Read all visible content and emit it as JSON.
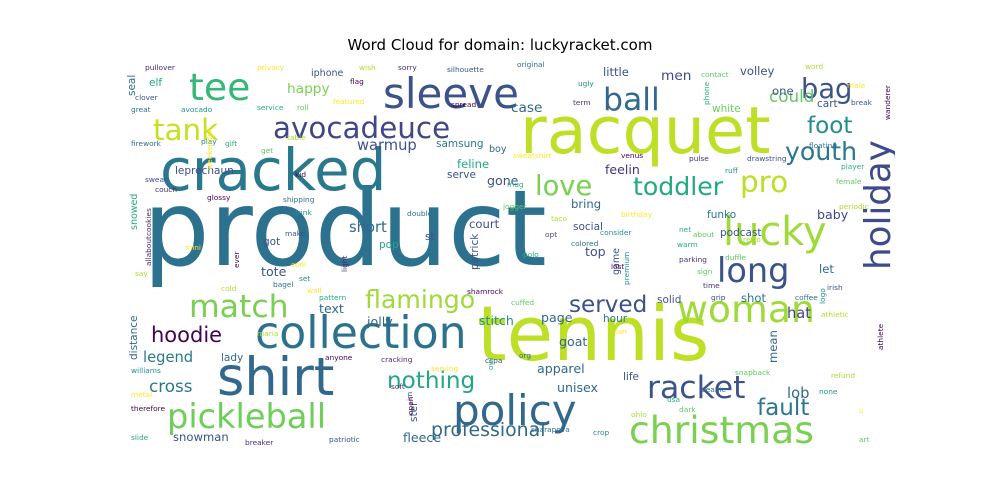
{
  "chart_data": {
    "type": "wordcloud",
    "title": "Word Cloud for domain: luckyracket.com",
    "palette": [
      "#440154",
      "#472c7a",
      "#3b518b",
      "#2c718e",
      "#21908d",
      "#27ad81",
      "#5cc863",
      "#aadc32",
      "#fde725"
    ],
    "words": [
      {
        "text": "product",
        "weight": 100
      },
      {
        "text": "tennis",
        "weight": 72
      },
      {
        "text": "racquet",
        "weight": 62
      },
      {
        "text": "cracked",
        "weight": 55
      },
      {
        "text": "shirt",
        "weight": 50
      },
      {
        "text": "collection",
        "weight": 42
      },
      {
        "text": "sleeve",
        "weight": 40
      },
      {
        "text": "policy",
        "weight": 40
      },
      {
        "text": "lucky",
        "weight": 38
      },
      {
        "text": "woman",
        "weight": 36
      },
      {
        "text": "christmas",
        "weight": 36
      },
      {
        "text": "tee",
        "weight": 36
      },
      {
        "text": "holiday",
        "weight": 34
      },
      {
        "text": "pickleball",
        "weight": 32
      },
      {
        "text": "long",
        "weight": 32
      },
      {
        "text": "racket",
        "weight": 30
      },
      {
        "text": "match",
        "weight": 30
      },
      {
        "text": "ball",
        "weight": 30
      },
      {
        "text": "avocadeuce",
        "weight": 28
      },
      {
        "text": "tank",
        "weight": 28
      },
      {
        "text": "pro",
        "weight": 28
      },
      {
        "text": "love",
        "weight": 26
      },
      {
        "text": "bag",
        "weight": 26
      },
      {
        "text": "flamingo",
        "weight": 24
      },
      {
        "text": "toddler",
        "weight": 24
      },
      {
        "text": "youth",
        "weight": 24
      },
      {
        "text": "fault",
        "weight": 22
      },
      {
        "text": "foot",
        "weight": 22
      },
      {
        "text": "nothing",
        "weight": 22
      },
      {
        "text": "served",
        "weight": 22
      },
      {
        "text": "hoodie",
        "weight": 20
      },
      {
        "text": "professional",
        "weight": 18
      },
      {
        "text": "cross",
        "weight": 16
      },
      {
        "text": "could",
        "weight": 16
      },
      {
        "text": "legend",
        "weight": 14
      },
      {
        "text": "lob",
        "weight": 14
      },
      {
        "text": "hat",
        "weight": 14
      },
      {
        "text": "short",
        "weight": 14
      },
      {
        "text": "warmup",
        "weight": 14
      },
      {
        "text": "happy",
        "weight": 13
      },
      {
        "text": "case",
        "weight": 13
      },
      {
        "text": "men",
        "weight": 13
      },
      {
        "text": "page",
        "weight": 12
      },
      {
        "text": "baby",
        "weight": 12
      },
      {
        "text": "stitch",
        "weight": 12
      },
      {
        "text": "top",
        "weight": 12
      },
      {
        "text": "text",
        "weight": 12
      },
      {
        "text": "tote",
        "weight": 12
      },
      {
        "text": "feelin",
        "weight": 12
      },
      {
        "text": "gone",
        "weight": 12
      },
      {
        "text": "apparel",
        "weight": 12
      },
      {
        "text": "goat",
        "weight": 12
      },
      {
        "text": "unisex",
        "weight": 12
      },
      {
        "text": "fleece",
        "weight": 12
      },
      {
        "text": "jolly",
        "weight": 12
      },
      {
        "text": "shot",
        "weight": 11
      },
      {
        "text": "court",
        "weight": 11
      },
      {
        "text": "feline",
        "weight": 11
      },
      {
        "text": "bring",
        "weight": 11
      },
      {
        "text": "snowman",
        "weight": 11
      },
      {
        "text": "let",
        "weight": 11
      },
      {
        "text": "mean",
        "weight": 11
      },
      {
        "text": "volley",
        "weight": 11
      },
      {
        "text": "little",
        "weight": 11
      },
      {
        "text": "one",
        "weight": 11
      },
      {
        "text": "funko",
        "weight": 10
      },
      {
        "text": "social",
        "weight": 10
      },
      {
        "text": "solid",
        "weight": 10
      },
      {
        "text": "hour",
        "weight": 10
      },
      {
        "text": "got",
        "weight": 10
      },
      {
        "text": "lady",
        "weight": 10
      },
      {
        "text": "samsung",
        "weight": 10
      },
      {
        "text": "leprechaun",
        "weight": 10
      },
      {
        "text": "distance",
        "weight": 10
      },
      {
        "text": "podcast",
        "weight": 10
      },
      {
        "text": "st",
        "weight": 10
      },
      {
        "text": "ster",
        "weight": 10
      },
      {
        "text": "patrick",
        "weight": 10
      },
      {
        "text": "pop",
        "weight": 10
      },
      {
        "text": "life",
        "weight": 10
      },
      {
        "text": "serve",
        "weight": 10
      },
      {
        "text": "white",
        "weight": 10
      },
      {
        "text": "cart",
        "weight": 10
      },
      {
        "text": "elf",
        "weight": 10
      },
      {
        "text": "seal",
        "weight": 10
      },
      {
        "text": "iphone",
        "weight": 9
      },
      {
        "text": "boy",
        "weight": 9
      },
      {
        "text": "game",
        "weight": 9
      },
      {
        "text": "snowed",
        "weight": 9
      },
      {
        "text": "privacy",
        "weight": 7
      },
      {
        "text": "flag",
        "weight": 7
      },
      {
        "text": "sorry",
        "weight": 7
      },
      {
        "text": "silhouette",
        "weight": 7
      },
      {
        "text": "original",
        "weight": 7
      },
      {
        "text": "ugly",
        "weight": 7
      },
      {
        "text": "phone",
        "weight": 7
      },
      {
        "text": "contact",
        "weight": 7
      },
      {
        "text": "word",
        "weight": 7
      },
      {
        "text": "male",
        "weight": 7
      },
      {
        "text": "wanderer",
        "weight": 7
      },
      {
        "text": "pullover",
        "weight": 7
      },
      {
        "text": "clover",
        "weight": 7
      },
      {
        "text": "great",
        "weight": 7
      },
      {
        "text": "avocado",
        "weight": 7
      },
      {
        "text": "service",
        "weight": 7
      },
      {
        "text": "roll",
        "weight": 7
      },
      {
        "text": "wish",
        "weight": 7
      },
      {
        "text": "featured",
        "weight": 7
      },
      {
        "text": "spread",
        "weight": 7
      },
      {
        "text": "term",
        "weight": 7
      },
      {
        "text": "break",
        "weight": 7
      },
      {
        "text": "firework",
        "weight": 7
      },
      {
        "text": "play",
        "weight": 7
      },
      {
        "text": "gift",
        "weight": 7
      },
      {
        "text": "get",
        "weight": 7
      },
      {
        "text": "table",
        "weight": 7
      },
      {
        "text": "sweatshirt",
        "weight": 7
      },
      {
        "text": "venus",
        "weight": 7
      },
      {
        "text": "pulse",
        "weight": 7
      },
      {
        "text": "drawstring",
        "weight": 7
      },
      {
        "text": "floating",
        "weight": 7
      },
      {
        "text": "ruff",
        "weight": 7
      },
      {
        "text": "player",
        "weight": 7
      },
      {
        "text": "female",
        "weight": 7
      },
      {
        "text": "periodic",
        "weight": 7
      },
      {
        "text": "weekender",
        "weight": 7
      },
      {
        "text": "kid",
        "weight": 7
      },
      {
        "text": "couch",
        "weight": 7
      },
      {
        "text": "sweat",
        "weight": 7
      },
      {
        "text": "shipping",
        "weight": 7
      },
      {
        "text": "drink",
        "weight": 7
      },
      {
        "text": "mug",
        "weight": 7
      },
      {
        "text": "jogger",
        "weight": 7
      },
      {
        "text": "taco",
        "weight": 7
      },
      {
        "text": "birthday",
        "weight": 7
      },
      {
        "text": "glossy",
        "weight": 7
      },
      {
        "text": "allaboutcookies",
        "weight": 7
      },
      {
        "text": "make",
        "weight": 7
      },
      {
        "text": "double",
        "weight": 7
      },
      {
        "text": "consider",
        "weight": 7
      },
      {
        "text": "net",
        "weight": 7
      },
      {
        "text": "about",
        "weight": 7
      },
      {
        "text": "retro",
        "weight": 7
      },
      {
        "text": "mini",
        "weight": 7
      },
      {
        "text": "ever",
        "weight": 7
      },
      {
        "text": "light",
        "weight": 7
      },
      {
        "text": "opt",
        "weight": 7
      },
      {
        "text": "colored",
        "weight": 7
      },
      {
        "text": "premium",
        "weight": 7
      },
      {
        "text": "warm",
        "weight": 7
      },
      {
        "text": "duffle",
        "weight": 7
      },
      {
        "text": "say",
        "weight": 7
      },
      {
        "text": "cool",
        "weight": 7
      },
      {
        "text": "lost",
        "weight": 7
      },
      {
        "text": "parking",
        "weight": 7
      },
      {
        "text": "irish",
        "weight": 7
      },
      {
        "text": "bagel",
        "weight": 7
      },
      {
        "text": "set",
        "weight": 7
      },
      {
        "text": "polo",
        "weight": 7
      },
      {
        "text": "sign",
        "weight": 7
      },
      {
        "text": "cold",
        "weight": 7
      },
      {
        "text": "wall",
        "weight": 7
      },
      {
        "text": "shamrock",
        "weight": 7
      },
      {
        "text": "time",
        "weight": 7
      },
      {
        "text": "grip",
        "weight": 7
      },
      {
        "text": "coffee",
        "weight": 7
      },
      {
        "text": "logo",
        "weight": 7
      },
      {
        "text": "pattern",
        "weight": 7
      },
      {
        "text": "cuffed",
        "weight": 7
      },
      {
        "text": "maria",
        "weight": 7
      },
      {
        "text": "fan",
        "weight": 7
      },
      {
        "text": "anyone",
        "weight": 7
      },
      {
        "text": "cracking",
        "weight": 7
      },
      {
        "text": "ccpa",
        "weight": 7
      },
      {
        "text": "org",
        "weight": 7
      },
      {
        "text": "williams",
        "weight": 7
      },
      {
        "text": "owl",
        "weight": 7
      },
      {
        "text": "snapback",
        "weight": 7
      },
      {
        "text": "refund",
        "weight": 7
      },
      {
        "text": "metal",
        "weight": 7
      },
      {
        "text": "therefore",
        "weight": 7
      },
      {
        "text": "soft",
        "weight": 7
      },
      {
        "text": "im",
        "weight": 7
      },
      {
        "text": "beanie",
        "weight": 7
      },
      {
        "text": "none",
        "weight": 7
      },
      {
        "text": "usa",
        "weight": 7
      },
      {
        "text": "dark",
        "weight": 7
      },
      {
        "text": "ohio",
        "weight": 7
      },
      {
        "text": "serving",
        "weight": 7
      },
      {
        "text": "open",
        "weight": 7
      },
      {
        "text": "breaker",
        "weight": 7
      },
      {
        "text": "patriotic",
        "weight": 7
      },
      {
        "text": "sharapova",
        "weight": 7
      },
      {
        "text": "crop",
        "weight": 7
      },
      {
        "text": "slide",
        "weight": 7
      },
      {
        "text": "art",
        "weight": 7
      },
      {
        "text": "athletic",
        "weight": 7
      },
      {
        "text": "u",
        "weight": 7
      },
      {
        "text": "athlete",
        "weight": 7
      }
    ]
  }
}
